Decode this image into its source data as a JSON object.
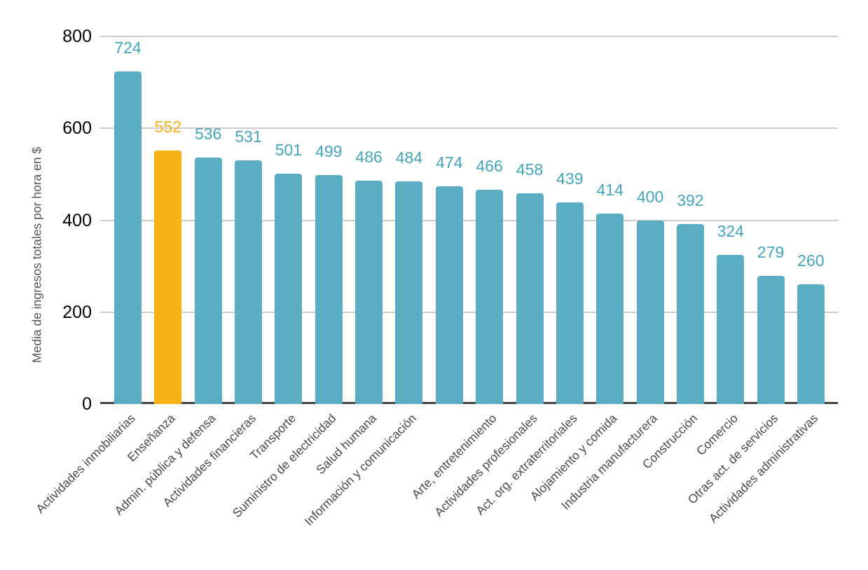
{
  "chart_data": {
    "type": "bar",
    "title": "",
    "xlabel": "",
    "ylabel": "Media de ingresos totales por hora en $",
    "ylim": [
      0,
      800
    ],
    "yticks": [
      0,
      200,
      400,
      600,
      800
    ],
    "grid": "horizontal",
    "legend": "none",
    "value_labels_shown": true,
    "categories": [
      "Actividades inmobiliarias",
      "Enseñanza",
      "Admin. pública y defensa",
      "Actividades financieras",
      "Transporte",
      "Suministro de electricidad",
      "Salud humana",
      "Información y comunicación",
      "",
      "Arte, entretenimiento",
      "Actividades profesionales",
      "Act. org. extraterritoriales",
      "Alojamiento y comida",
      "Industria manufacturera",
      "Construcción",
      "Comercio",
      "Otras act. de servicios",
      "Actividades administrativas"
    ],
    "values": [
      724,
      552,
      536,
      531,
      501,
      499,
      486,
      484,
      474,
      466,
      458,
      439,
      414,
      400,
      392,
      324,
      279,
      260
    ],
    "highlight_index": 1,
    "highlighted_category": "Enseñanza",
    "colors": {
      "bar": "#5BADC4",
      "bar_highlight": "#F8B216",
      "value_label": "#48A4BB",
      "value_label_highlight": "#F5B11B",
      "grid_line": "#CCCCCC",
      "axis_line": "#424242",
      "tick_label": "#000000",
      "category_label": "#4A4A4A"
    }
  }
}
